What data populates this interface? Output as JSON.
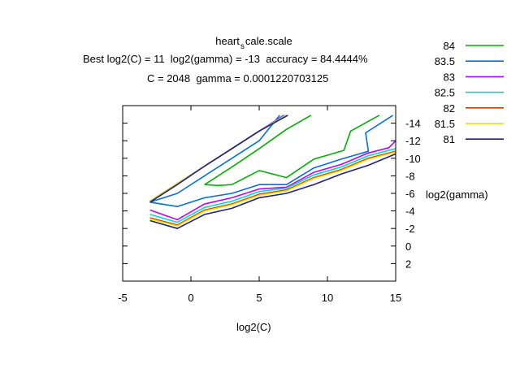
{
  "chart_data": {
    "type": "line",
    "title": {
      "main": "heart",
      "subscript": "s",
      "rest": "cale.scale"
    },
    "subtitle_line1": "Best log2(C) = 11  log2(gamma) = -13  accuracy = 84.4444%",
    "subtitle_line2": "C = 2048  gamma = 0.0001220703125",
    "xlabel": "log2(C)",
    "ylabel": "log2(gamma)",
    "xlim": [
      -5,
      15
    ],
    "ylim": [
      4,
      -16
    ],
    "x_ticks": [
      {
        "value": -5,
        "label": "-5"
      },
      {
        "value": 0,
        "label": "0"
      },
      {
        "value": 5,
        "label": "5"
      },
      {
        "value": 10,
        "label": "10"
      },
      {
        "value": 15,
        "label": "15"
      }
    ],
    "y_ticks": [
      {
        "value": -14,
        "label": "-14"
      },
      {
        "value": -12,
        "label": "-12"
      },
      {
        "value": -10,
        "label": "-10"
      },
      {
        "value": -8,
        "label": "-8"
      },
      {
        "value": -6,
        "label": "-6"
      },
      {
        "value": -4,
        "label": "-4"
      },
      {
        "value": -2,
        "label": "-2"
      },
      {
        "value": 0,
        "label": "0"
      },
      {
        "value": 2,
        "label": "2"
      }
    ],
    "legend_position": "top-right",
    "grid": false,
    "series": [
      {
        "name": "84",
        "color": "#00b000",
        "segments": [
          {
            "x": [
              1,
              2,
              3,
              5,
              7,
              9,
              11.2,
              11.7,
              13.8
            ],
            "y": [
              -7,
              -6.9,
              -7,
              -8.6,
              -7.8,
              -9.9,
              -10.9,
              -13.1,
              -14.9
            ]
          },
          {
            "x": [
              1,
              3,
              5,
              7,
              8.8
            ],
            "y": [
              -7,
              -9,
              -11.1,
              -13.3,
              -14.9
            ]
          }
        ]
      },
      {
        "name": "83.5",
        "color": "#0070e0",
        "segments": [
          {
            "x": [
              -3,
              -1,
              1,
              3,
              5,
              7,
              9,
              11,
              13,
              12.8,
              14.8
            ],
            "y": [
              -5,
              -4.5,
              -5.5,
              -6,
              -7,
              -7,
              -8.9,
              -9.9,
              -10.8,
              -12.9,
              -14.9
            ]
          },
          {
            "x": [
              -3,
              -1,
              1,
              3,
              5,
              6.5
            ],
            "y": [
              -5,
              -6,
              -8,
              -10,
              -12,
              -14.9
            ]
          }
        ]
      },
      {
        "name": "83",
        "color": "#c000ff",
        "segments": [
          {
            "x": [
              -3,
              -1,
              1,
              3,
              5,
              7,
              9,
              11,
              13,
              14.5,
              15
            ],
            "y": [
              -4.1,
              -3,
              -4.8,
              -5.5,
              -6.5,
              -6.7,
              -8.4,
              -9.3,
              -10.6,
              -11.2,
              -12
            ]
          },
          {
            "x": [
              -3,
              -1,
              1,
              3,
              5,
              6.8
            ],
            "y": [
              -5.1,
              -7.1,
              -9.1,
              -11.1,
              -13.1,
              -14.9
            ]
          }
        ]
      },
      {
        "name": "82.5",
        "color": "#00d8d8",
        "segments": [
          {
            "x": [
              -3,
              -1,
              1,
              3,
              5,
              7,
              9,
              11,
              13,
              15
            ],
            "y": [
              -3.6,
              -2.7,
              -4.4,
              -5.1,
              -6.2,
              -6.6,
              -8.1,
              -9,
              -10.3,
              -11.1
            ]
          },
          {
            "x": [
              -3,
              -1,
              1,
              3,
              5,
              6.9
            ],
            "y": [
              -5.1,
              -7.1,
              -9.1,
              -11.1,
              -13.1,
              -14.9
            ]
          }
        ]
      },
      {
        "name": "82",
        "color": "#c04000",
        "segments": [
          {
            "x": [
              -3,
              -1,
              1,
              3,
              5,
              7,
              9,
              11,
              13,
              15
            ],
            "y": [
              -3.2,
              -2.4,
              -4.1,
              -4.8,
              -5.9,
              -6.4,
              -7.8,
              -8.7,
              -10,
              -10.8
            ]
          },
          {
            "x": [
              -3,
              -1,
              1,
              3,
              5,
              7
            ],
            "y": [
              -5.1,
              -7.1,
              -9.1,
              -11.1,
              -13.1,
              -14.9
            ]
          }
        ]
      },
      {
        "name": "81.5",
        "color": "#e0e000",
        "segments": [
          {
            "x": [
              -3,
              -1,
              1,
              3,
              5,
              7,
              9,
              11,
              13,
              15
            ],
            "y": [
              -3.1,
              -2.3,
              -4,
              -4.7,
              -5.8,
              -6.3,
              -7.7,
              -8.6,
              -9.9,
              -10.7
            ]
          },
          {
            "x": [
              -3,
              -1,
              1,
              3,
              5,
              7
            ],
            "y": [
              -5.1,
              -7.1,
              -9.1,
              -11.1,
              -13.1,
              -14.9
            ]
          }
        ]
      },
      {
        "name": "81",
        "color": "#202080",
        "segments": [
          {
            "x": [
              -3,
              -1,
              1,
              3,
              5,
              7,
              9,
              11,
              13,
              15
            ],
            "y": [
              -2.9,
              -2,
              -3.6,
              -4.3,
              -5.5,
              -6,
              -7,
              -8.2,
              -9.2,
              -10.5
            ]
          },
          {
            "x": [
              -3,
              -1,
              1,
              3,
              5,
              7.1
            ],
            "y": [
              -5,
              -7,
              -9.1,
              -11.1,
              -13.1,
              -14.9
            ]
          }
        ]
      }
    ]
  }
}
